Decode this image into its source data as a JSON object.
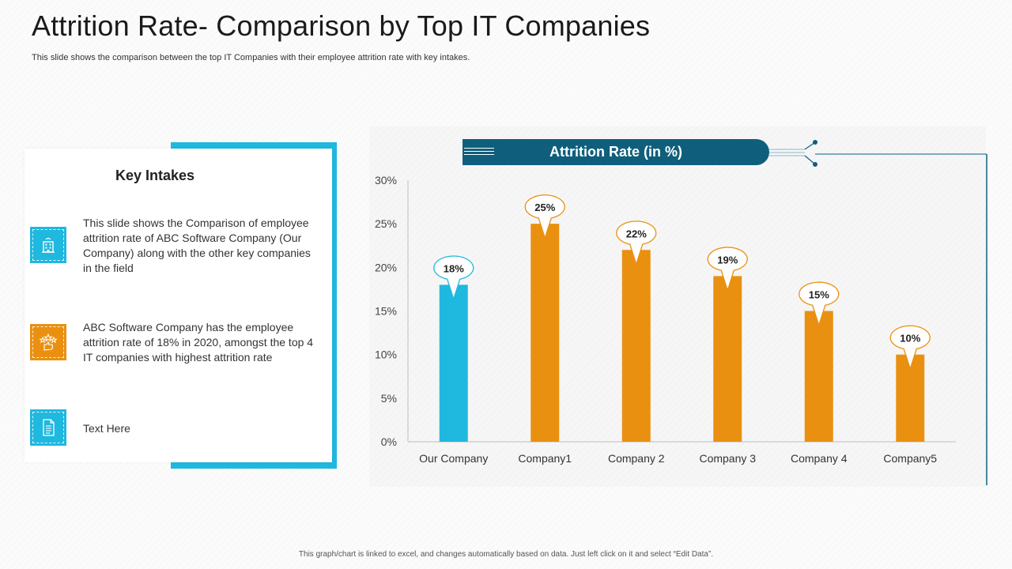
{
  "slide": {
    "title": "Attrition Rate- Comparison by Top IT Companies",
    "subtitle": "This slide shows the comparison between  the top  IT Companies with their employee  attrition rate with key intakes.",
    "footer": "This graph/chart is linked to excel, and changes automatically based on data. Just left click on it and select “Edit Data”."
  },
  "key_intakes": {
    "title": "Key Intakes",
    "items": [
      {
        "icon": "office-building-icon",
        "text": "This slide shows the Comparison of employee attrition rate of ABC Software Company (Our Company) along with the other key companies in the field"
      },
      {
        "icon": "rating-stars-icon",
        "text": "ABC Software Company has the employee attrition rate of 18% in 2020, amongst the top 4 IT companies with highest attrition rate"
      },
      {
        "icon": "document-icon",
        "text": "Text Here"
      }
    ]
  },
  "colors": {
    "accent_blue": "#1fb8de",
    "accent_orange": "#ea9010",
    "header_dark": "#0f5f7c"
  },
  "chart_data": {
    "type": "bar",
    "title": "Attrition Rate (in %)",
    "categories": [
      "Our Company",
      "Company1",
      "Company 2",
      "Company 3",
      "Company 4",
      "Company5"
    ],
    "values": [
      18,
      25,
      22,
      19,
      15,
      10
    ],
    "data_labels": [
      "18%",
      "25%",
      "22%",
      "19%",
      "15%",
      "10%"
    ],
    "bar_colors": [
      "#1fb8de",
      "#ea9010",
      "#ea9010",
      "#ea9010",
      "#ea9010",
      "#ea9010"
    ],
    "yticks": [
      "0%",
      "5%",
      "10%",
      "15%",
      "20%",
      "25%",
      "30%"
    ],
    "ylim": [
      0,
      30
    ],
    "ystep": 5,
    "grid": false,
    "legend": "none"
  }
}
